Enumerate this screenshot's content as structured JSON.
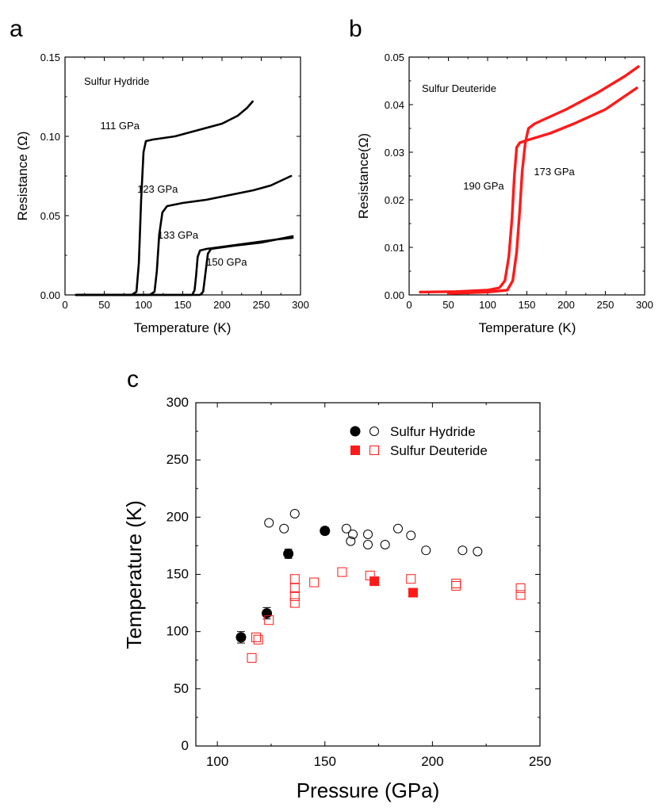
{
  "panels": {
    "a": {
      "letter": "a"
    },
    "b": {
      "letter": "b"
    },
    "c": {
      "letter": "c"
    }
  },
  "chart_data": [
    {
      "id": "a",
      "type": "line",
      "title": "",
      "annotation": "Sulfur Hydride",
      "xlabel": "Temperature (K)",
      "ylabel": "Resistance (Ω)",
      "xlim": [
        0,
        300
      ],
      "ylim": [
        0,
        0.15
      ],
      "xticks": [
        0,
        50,
        100,
        150,
        200,
        250,
        300
      ],
      "xtick_labels": [
        "0",
        "50",
        "100",
        "150",
        "200",
        "250",
        "300"
      ],
      "yticks": [
        0,
        0.05,
        0.1,
        0.15
      ],
      "ytick_labels": [
        "0.00",
        "0.05",
        "0.10",
        "0.15"
      ],
      "color": "#000000",
      "series": [
        {
          "name": "111 GPa",
          "label": {
            "x": 45,
            "y": 0.1045
          },
          "points": [
            [
              14,
              0
            ],
            [
              85,
              0
            ],
            [
              91,
              0.002
            ],
            [
              94,
              0.02
            ],
            [
              97,
              0.06
            ],
            [
              100,
              0.09
            ],
            [
              103,
              0.097
            ],
            [
              112,
              0.098
            ],
            [
              140,
              0.1
            ],
            [
              170,
              0.104
            ],
            [
              200,
              0.108
            ],
            [
              220,
              0.113
            ],
            [
              232,
              0.118
            ],
            [
              239,
              0.122
            ]
          ]
        },
        {
          "name": "123 GPa",
          "label": {
            "x": 92,
            "y": 0.0645
          },
          "points": [
            [
              14,
              0
            ],
            [
              108,
              0
            ],
            [
              114,
              0.002
            ],
            [
              117,
              0.015
            ],
            [
              120,
              0.038
            ],
            [
              124,
              0.052
            ],
            [
              130,
              0.056
            ],
            [
              150,
              0.058
            ],
            [
              180,
              0.06
            ],
            [
              210,
              0.063
            ],
            [
              240,
              0.066
            ],
            [
              262,
              0.069
            ],
            [
              288,
              0.075
            ]
          ]
        },
        {
          "name": "133 GPa",
          "label": {
            "x": 118,
            "y": 0.0355
          },
          "points": [
            [
              14,
              0
            ],
            [
              162,
              0
            ],
            [
              165,
              0.003
            ],
            [
              167,
              0.012
            ],
            [
              169,
              0.024
            ],
            [
              172,
              0.028
            ],
            [
              180,
              0.029
            ],
            [
              210,
              0.031
            ],
            [
              240,
              0.033
            ],
            [
              270,
              0.035
            ],
            [
              290,
              0.036
            ]
          ]
        },
        {
          "name": "150 GPa",
          "label": {
            "x": 180,
            "y": 0.0186
          },
          "points": [
            [
              14,
              0
            ],
            [
              172,
              0
            ],
            [
              176,
              0.002
            ],
            [
              179,
              0.014
            ],
            [
              182,
              0.026
            ],
            [
              186,
              0.029
            ],
            [
              215,
              0.031
            ],
            [
              250,
              0.033
            ],
            [
              290,
              0.037
            ]
          ]
        }
      ]
    },
    {
      "id": "b",
      "type": "line",
      "title": "",
      "annotation": "Sulfur Deuteride",
      "xlabel": "Temperature (K)",
      "ylabel": "Resistance(Ω)",
      "xlim": [
        0,
        300
      ],
      "ylim": [
        0,
        0.05
      ],
      "xticks": [
        0,
        50,
        100,
        150,
        200,
        250,
        300
      ],
      "xtick_labels": [
        "0",
        "50",
        "100",
        "150",
        "200",
        "250",
        "300"
      ],
      "yticks": [
        0,
        0.01,
        0.02,
        0.03,
        0.04,
        0.05
      ],
      "ytick_labels": [
        "0.00",
        "0.01",
        "0.02",
        "0.03",
        "0.04",
        "0.05"
      ],
      "color": "#ff1a1a",
      "series": [
        {
          "name": "190 GPa",
          "label": {
            "x": 69,
            "y": 0.0222
          },
          "points": [
            [
              14,
              0.0006
            ],
            [
              60,
              0.0007
            ],
            [
              100,
              0.001
            ],
            [
              115,
              0.0015
            ],
            [
              122,
              0.003
            ],
            [
              127,
              0.008
            ],
            [
              131,
              0.016
            ],
            [
              134,
              0.025
            ],
            [
              137,
              0.031
            ],
            [
              141,
              0.032
            ],
            [
              150,
              0.0325
            ],
            [
              180,
              0.034
            ],
            [
              210,
              0.036
            ],
            [
              250,
              0.039
            ],
            [
              290,
              0.0435
            ]
          ]
        },
        {
          "name": "173 GPa",
          "label": {
            "x": 159,
            "y": 0.0252
          },
          "points": [
            [
              50,
              0.0003
            ],
            [
              100,
              0.0006
            ],
            [
              125,
              0.001
            ],
            [
              132,
              0.003
            ],
            [
              137,
              0.009
            ],
            [
              141,
              0.018
            ],
            [
              144,
              0.026
            ],
            [
              148,
              0.032
            ],
            [
              152,
              0.035
            ],
            [
              160,
              0.036
            ],
            [
              200,
              0.039
            ],
            [
              240,
              0.0425
            ],
            [
              275,
              0.046
            ],
            [
              292,
              0.048
            ]
          ]
        }
      ]
    },
    {
      "id": "c",
      "type": "scatter",
      "title": "",
      "xlabel": "Pressure (GPa)",
      "ylabel": "Temperature (K)",
      "xlim": [
        90,
        250
      ],
      "ylim": [
        0,
        300
      ],
      "xticks": [
        100,
        150,
        200,
        250
      ],
      "xtick_labels": [
        "100",
        "150",
        "200",
        "250"
      ],
      "yticks": [
        0,
        50,
        100,
        150,
        200,
        250,
        300
      ],
      "ytick_labels": [
        "0",
        "50",
        "100",
        "150",
        "200",
        "250",
        "300"
      ],
      "legend_position": "top-right",
      "legend": [
        {
          "label": "Sulfur Hydride",
          "color": "#000000",
          "markers": [
            "filled-circle",
            "open-circle"
          ]
        },
        {
          "label": "Sulfur Deuteride",
          "color": "#ff1a1a",
          "markers": [
            "filled-square",
            "open-square"
          ]
        }
      ],
      "series": [
        {
          "name": "Sulfur Hydride (filled)",
          "marker": "filled-circle",
          "color": "#000000",
          "points": [
            [
              111,
              95,
              5
            ],
            [
              123,
              116,
              5
            ],
            [
              133,
              168,
              4
            ],
            [
              150,
              188,
              3
            ]
          ]
        },
        {
          "name": "Sulfur Hydride (open)",
          "marker": "open-circle",
          "color": "#000000",
          "points": [
            [
              124,
              195
            ],
            [
              131,
              190
            ],
            [
              136,
              203
            ],
            [
              160,
              190
            ],
            [
              162,
              179
            ],
            [
              163,
              185
            ],
            [
              170,
              185
            ],
            [
              170,
              176
            ],
            [
              178,
              176
            ],
            [
              184,
              190
            ],
            [
              190,
              184
            ],
            [
              197,
              171
            ],
            [
              214,
              171
            ],
            [
              221,
              170
            ]
          ]
        },
        {
          "name": "Sulfur Deuteride (filled)",
          "marker": "filled-square",
          "color": "#ff1a1a",
          "points": [
            [
              173,
              144
            ],
            [
              191,
              134
            ]
          ]
        },
        {
          "name": "Sulfur Deuteride (open)",
          "marker": "open-square",
          "color": "#ff1a1a",
          "points": [
            [
              116,
              77
            ],
            [
              118,
              95
            ],
            [
              119,
              93
            ],
            [
              124,
              110
            ],
            [
              136,
              125
            ],
            [
              136,
              131
            ],
            [
              136,
              138
            ],
            [
              136,
              146
            ],
            [
              145,
              143
            ],
            [
              158,
              152
            ],
            [
              171,
              149
            ],
            [
              190,
              146
            ],
            [
              211,
              142
            ],
            [
              211,
              140
            ],
            [
              241,
              138
            ],
            [
              241,
              132
            ]
          ]
        }
      ]
    }
  ]
}
